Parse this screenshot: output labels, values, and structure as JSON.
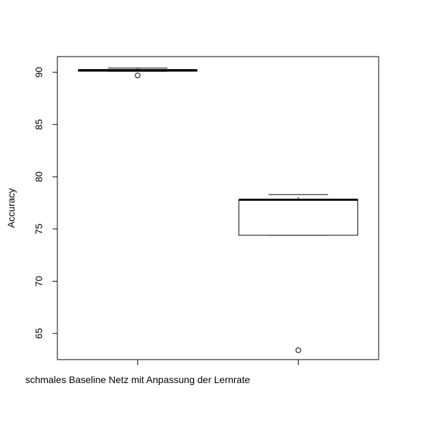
{
  "chart_data": {
    "type": "boxplot",
    "ylabel": "Accuracy",
    "xlabel": "",
    "ylim": [
      62.5,
      91.5
    ],
    "yticks": [
      65,
      70,
      75,
      80,
      85,
      90
    ],
    "categories": [
      "schmales Baseline Netz mit Anpassung der Lernrate",
      ""
    ],
    "boxes": [
      {
        "category_index": 0,
        "whisker_low": 90.1,
        "q1": 90.1,
        "median": 90.2,
        "q3": 90.2,
        "whisker_high": 90.4,
        "outliers": [
          89.7
        ]
      },
      {
        "category_index": 1,
        "whisker_low": 74.4,
        "q1": 74.4,
        "median": 77.8,
        "q3": 77.8,
        "whisker_high": 78.3,
        "outliers": [
          63.4
        ]
      }
    ],
    "grid": false,
    "legend": "none"
  }
}
